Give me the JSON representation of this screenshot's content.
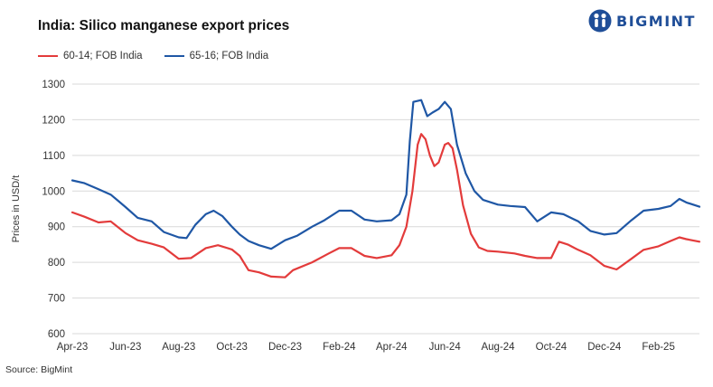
{
  "header": {
    "title": "India: Silico manganese export prices",
    "logo_text": "BIGMINT"
  },
  "source": "Source: BigMint",
  "colors": {
    "red": "#e33b3b",
    "blue": "#1f57a5",
    "grid": "#d9d9d9",
    "logo": "#1f4e98"
  },
  "chart_data": {
    "type": "line",
    "title": "India: Silico manganese export prices",
    "xlabel": "",
    "ylabel": "Prices in USD/t",
    "ylim": [
      600,
      1300
    ],
    "yticks": [
      600,
      700,
      800,
      900,
      1000,
      1100,
      1200,
      1300
    ],
    "xlim": [
      "2023-04-01",
      "2025-03-20"
    ],
    "xticks": [
      {
        "label": "Apr-23",
        "date": "2023-04-01"
      },
      {
        "label": "Jun-23",
        "date": "2023-06-01"
      },
      {
        "label": "Aug-23",
        "date": "2023-08-01"
      },
      {
        "label": "Oct-23",
        "date": "2023-10-01"
      },
      {
        "label": "Dec-23",
        "date": "2023-12-01"
      },
      {
        "label": "Feb-24",
        "date": "2024-02-01"
      },
      {
        "label": "Apr-24",
        "date": "2024-04-01"
      },
      {
        "label": "Jun-24",
        "date": "2024-06-01"
      },
      {
        "label": "Aug-24",
        "date": "2024-08-01"
      },
      {
        "label": "Oct-24",
        "date": "2024-10-01"
      },
      {
        "label": "Dec-24",
        "date": "2024-12-01"
      },
      {
        "label": "Feb-25",
        "date": "2025-02-01"
      }
    ],
    "grid": true,
    "legend": "top-left",
    "series": [
      {
        "name": "60-14; FOB India",
        "color": "#e33b3b",
        "points": [
          [
            "2023-04-01",
            940
          ],
          [
            "2023-04-15",
            928
          ],
          [
            "2023-05-01",
            912
          ],
          [
            "2023-05-15",
            915
          ],
          [
            "2023-06-01",
            882
          ],
          [
            "2023-06-15",
            862
          ],
          [
            "2023-07-01",
            852
          ],
          [
            "2023-07-15",
            842
          ],
          [
            "2023-08-01",
            810
          ],
          [
            "2023-08-15",
            812
          ],
          [
            "2023-09-01",
            840
          ],
          [
            "2023-09-15",
            848
          ],
          [
            "2023-10-01",
            836
          ],
          [
            "2023-10-10",
            818
          ],
          [
            "2023-10-20",
            778
          ],
          [
            "2023-11-01",
            772
          ],
          [
            "2023-11-15",
            760
          ],
          [
            "2023-12-01",
            758
          ],
          [
            "2023-12-10",
            778
          ],
          [
            "2024-01-01",
            800
          ],
          [
            "2024-01-20",
            825
          ],
          [
            "2024-02-01",
            840
          ],
          [
            "2024-02-15",
            840
          ],
          [
            "2024-03-01",
            818
          ],
          [
            "2024-03-15",
            812
          ],
          [
            "2024-04-01",
            820
          ],
          [
            "2024-04-10",
            848
          ],
          [
            "2024-04-18",
            900
          ],
          [
            "2024-04-25",
            1000
          ],
          [
            "2024-05-01",
            1130
          ],
          [
            "2024-05-05",
            1160
          ],
          [
            "2024-05-10",
            1145
          ],
          [
            "2024-05-15",
            1100
          ],
          [
            "2024-05-20",
            1070
          ],
          [
            "2024-05-25",
            1080
          ],
          [
            "2024-06-01",
            1130
          ],
          [
            "2024-06-05",
            1135
          ],
          [
            "2024-06-10",
            1120
          ],
          [
            "2024-06-15",
            1060
          ],
          [
            "2024-06-22",
            960
          ],
          [
            "2024-07-01",
            880
          ],
          [
            "2024-07-10",
            842
          ],
          [
            "2024-07-20",
            832
          ],
          [
            "2024-08-01",
            830
          ],
          [
            "2024-08-20",
            825
          ],
          [
            "2024-09-01",
            818
          ],
          [
            "2024-09-15",
            812
          ],
          [
            "2024-10-01",
            812
          ],
          [
            "2024-10-10",
            858
          ],
          [
            "2024-10-20",
            850
          ],
          [
            "2024-11-01",
            835
          ],
          [
            "2024-11-15",
            820
          ],
          [
            "2024-12-01",
            790
          ],
          [
            "2024-12-15",
            780
          ],
          [
            "2025-01-01",
            810
          ],
          [
            "2025-01-15",
            835
          ],
          [
            "2025-02-01",
            845
          ],
          [
            "2025-02-15",
            860
          ],
          [
            "2025-02-25",
            870
          ],
          [
            "2025-03-05",
            865
          ],
          [
            "2025-03-20",
            858
          ]
        ]
      },
      {
        "name": "65-16; FOB India",
        "color": "#1f57a5",
        "points": [
          [
            "2023-04-01",
            1030
          ],
          [
            "2023-04-15",
            1022
          ],
          [
            "2023-05-01",
            1005
          ],
          [
            "2023-05-15",
            990
          ],
          [
            "2023-06-01",
            955
          ],
          [
            "2023-06-15",
            925
          ],
          [
            "2023-07-01",
            915
          ],
          [
            "2023-07-15",
            885
          ],
          [
            "2023-08-01",
            870
          ],
          [
            "2023-08-10",
            868
          ],
          [
            "2023-08-20",
            905
          ],
          [
            "2023-09-01",
            935
          ],
          [
            "2023-09-10",
            945
          ],
          [
            "2023-09-20",
            930
          ],
          [
            "2023-10-01",
            900
          ],
          [
            "2023-10-10",
            878
          ],
          [
            "2023-10-20",
            860
          ],
          [
            "2023-11-01",
            848
          ],
          [
            "2023-11-15",
            838
          ],
          [
            "2023-12-01",
            862
          ],
          [
            "2023-12-15",
            875
          ],
          [
            "2024-01-01",
            900
          ],
          [
            "2024-01-15",
            918
          ],
          [
            "2024-02-01",
            945
          ],
          [
            "2024-02-15",
            945
          ],
          [
            "2024-03-01",
            920
          ],
          [
            "2024-03-15",
            915
          ],
          [
            "2024-04-01",
            918
          ],
          [
            "2024-04-10",
            935
          ],
          [
            "2024-04-18",
            990
          ],
          [
            "2024-04-22",
            1140
          ],
          [
            "2024-04-26",
            1250
          ],
          [
            "2024-05-05",
            1255
          ],
          [
            "2024-05-12",
            1210
          ],
          [
            "2024-05-18",
            1220
          ],
          [
            "2024-05-25",
            1230
          ],
          [
            "2024-06-01",
            1250
          ],
          [
            "2024-06-08",
            1230
          ],
          [
            "2024-06-15",
            1130
          ],
          [
            "2024-06-25",
            1050
          ],
          [
            "2024-07-05",
            1000
          ],
          [
            "2024-07-15",
            975
          ],
          [
            "2024-08-01",
            962
          ],
          [
            "2024-08-15",
            958
          ],
          [
            "2024-09-01",
            955
          ],
          [
            "2024-09-15",
            915
          ],
          [
            "2024-10-01",
            940
          ],
          [
            "2024-10-15",
            935
          ],
          [
            "2024-11-01",
            915
          ],
          [
            "2024-11-15",
            888
          ],
          [
            "2024-12-01",
            878
          ],
          [
            "2024-12-15",
            882
          ],
          [
            "2025-01-01",
            918
          ],
          [
            "2025-01-15",
            945
          ],
          [
            "2025-02-01",
            950
          ],
          [
            "2025-02-15",
            958
          ],
          [
            "2025-02-25",
            978
          ],
          [
            "2025-03-05",
            968
          ],
          [
            "2025-03-20",
            956
          ]
        ]
      }
    ]
  }
}
